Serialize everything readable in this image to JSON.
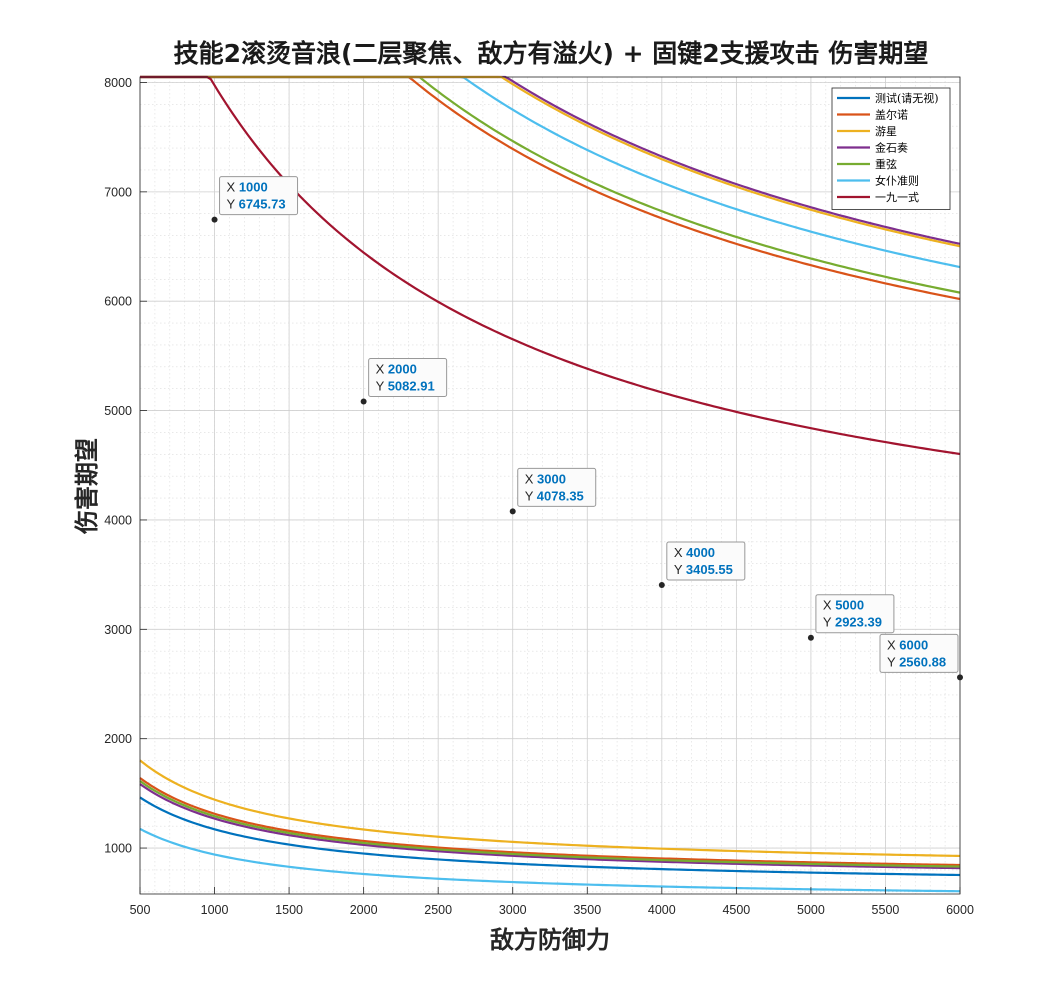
{
  "chart_data": {
    "type": "line",
    "title": "技能2滚烫音浪(二层聚焦、敌方有溢火) + 固键2支援攻击 伤害期望",
    "xlabel": "敌方防御力",
    "ylabel": "伤害期望",
    "xlim": [
      500,
      6000
    ],
    "ylim": [
      580,
      8050
    ],
    "grid": true,
    "minor_grid": true,
    "xticks": [
      500,
      1000,
      1500,
      2000,
      2500,
      3000,
      3500,
      4000,
      4500,
      5000,
      5500,
      6000
    ],
    "yticks": [
      1000,
      2000,
      3000,
      4000,
      5000,
      6000,
      7000,
      8000
    ],
    "legend_position": "top-right",
    "series_colors": {
      "测试(请无视)": "#0072bd",
      "盖尔诺": "#d95319",
      "游星": "#edb120",
      "金石奏": "#7e2f8e",
      "重弦": "#77ac30",
      "女仆准则": "#4dbeee",
      "一九一式": "#a2142f"
    },
    "series": [
      {
        "name": "测试(请无视)",
        "group": "lower",
        "a": 1200,
        "K": 635,
        "color": "#0072bd"
      },
      {
        "name": "盖尔诺",
        "group": "lower",
        "a": 1200,
        "K": 712,
        "color": "#d95319"
      },
      {
        "name": "游星",
        "group": "lower",
        "a": 1200,
        "K": 782,
        "color": "#edb120"
      },
      {
        "name": "金石奏",
        "group": "lower",
        "a": 1200,
        "K": 688,
        "color": "#7e2f8e"
      },
      {
        "name": "重弦",
        "group": "lower",
        "a": 1200,
        "K": 700,
        "color": "#77ac30"
      },
      {
        "name": "女仆准则",
        "group": "lower",
        "a": 1200,
        "K": 510,
        "color": "#4dbeee"
      },
      {
        "name": "盖尔诺",
        "group": "upper",
        "a": 3300,
        "K": 4120,
        "color": "#d95319"
      },
      {
        "name": "重弦",
        "group": "upper",
        "a": 3300,
        "K": 4160,
        "color": "#77ac30"
      },
      {
        "name": "女仆准则",
        "group": "upper",
        "a": 3300,
        "K": 4320,
        "color": "#4dbeee"
      },
      {
        "name": "金石奏",
        "group": "upper",
        "a": 3300,
        "K": 4465,
        "color": "#7e2f8e"
      },
      {
        "name": "游星",
        "group": "upper",
        "a": 3300,
        "K": 4450,
        "color": "#edb120"
      },
      {
        "name": "一九一式",
        "group": "upper",
        "a": 3300,
        "K": 3150,
        "color": "#a2142f"
      }
    ],
    "datatips": [
      {
        "x": 1000,
        "y": 6745.73
      },
      {
        "x": 2000,
        "y": 5082.91
      },
      {
        "x": 3000,
        "y": 4078.35
      },
      {
        "x": 4000,
        "y": 3405.55
      },
      {
        "x": 5000,
        "y": 2923.39
      },
      {
        "x": 6000,
        "y": 2560.88
      }
    ]
  },
  "legend": {
    "items": [
      {
        "label": "测试(请无视)",
        "color": "#0072bd"
      },
      {
        "label": "盖尔诺",
        "color": "#d95319"
      },
      {
        "label": "游星",
        "color": "#edb120"
      },
      {
        "label": "金石奏",
        "color": "#7e2f8e"
      },
      {
        "label": "重弦",
        "color": "#77ac30"
      },
      {
        "label": "女仆准则",
        "color": "#4dbeee"
      },
      {
        "label": "一九一式",
        "color": "#a2142f"
      }
    ]
  },
  "datatip_labels": {
    "x_key": "X",
    "y_key": "Y"
  }
}
